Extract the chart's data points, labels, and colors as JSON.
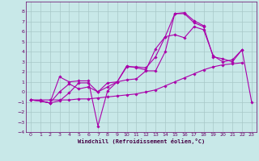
{
  "xlabel": "Windchill (Refroidissement éolien,°C)",
  "x": [
    0,
    1,
    2,
    3,
    4,
    5,
    6,
    7,
    8,
    9,
    10,
    11,
    12,
    13,
    14,
    15,
    16,
    17,
    18,
    19,
    20,
    21,
    22,
    23
  ],
  "line1": [
    -0.8,
    -0.9,
    -1.1,
    -0.9,
    -0.1,
    0.9,
    0.9,
    0.0,
    0.9,
    1.0,
    2.6,
    2.4,
    2.2,
    4.3,
    5.5,
    5.7,
    5.4,
    6.5,
    6.2,
    3.6,
    3.0,
    3.2,
    4.2,
    null
  ],
  "line2": [
    -0.8,
    -0.9,
    -1.1,
    1.5,
    1.0,
    1.1,
    1.1,
    -3.4,
    0.1,
    1.0,
    1.2,
    1.3,
    2.1,
    2.1,
    4.0,
    7.8,
    7.9,
    7.1,
    6.6,
    null,
    null,
    null,
    null,
    null
  ],
  "line3": [
    -0.8,
    -0.8,
    -0.8,
    -0.8,
    -0.8,
    -0.7,
    -0.7,
    -0.6,
    -0.5,
    -0.4,
    -0.3,
    -0.2,
    0.0,
    0.2,
    0.6,
    1.0,
    1.4,
    1.8,
    2.2,
    2.5,
    2.7,
    2.8,
    2.9,
    null
  ],
  "line4": [
    -0.8,
    -0.9,
    -1.1,
    0.0,
    0.8,
    0.3,
    0.5,
    0.0,
    0.5,
    1.0,
    2.5,
    2.5,
    2.4,
    3.5,
    5.5,
    7.8,
    7.8,
    6.9,
    6.5,
    3.5,
    3.3,
    3.0,
    4.2,
    -1.0
  ],
  "bg_color": "#c8e8e8",
  "grid_color": "#a8c8c8",
  "line_color": "#aa00aa",
  "ylim": [
    -4,
    9
  ],
  "xlim": [
    -0.5,
    23.5
  ],
  "yticks": [
    -4,
    -3,
    -2,
    -1,
    0,
    1,
    2,
    3,
    4,
    5,
    6,
    7,
    8
  ],
  "xticks": [
    0,
    1,
    2,
    3,
    4,
    5,
    6,
    7,
    8,
    9,
    10,
    11,
    12,
    13,
    14,
    15,
    16,
    17,
    18,
    19,
    20,
    21,
    22,
    23
  ]
}
